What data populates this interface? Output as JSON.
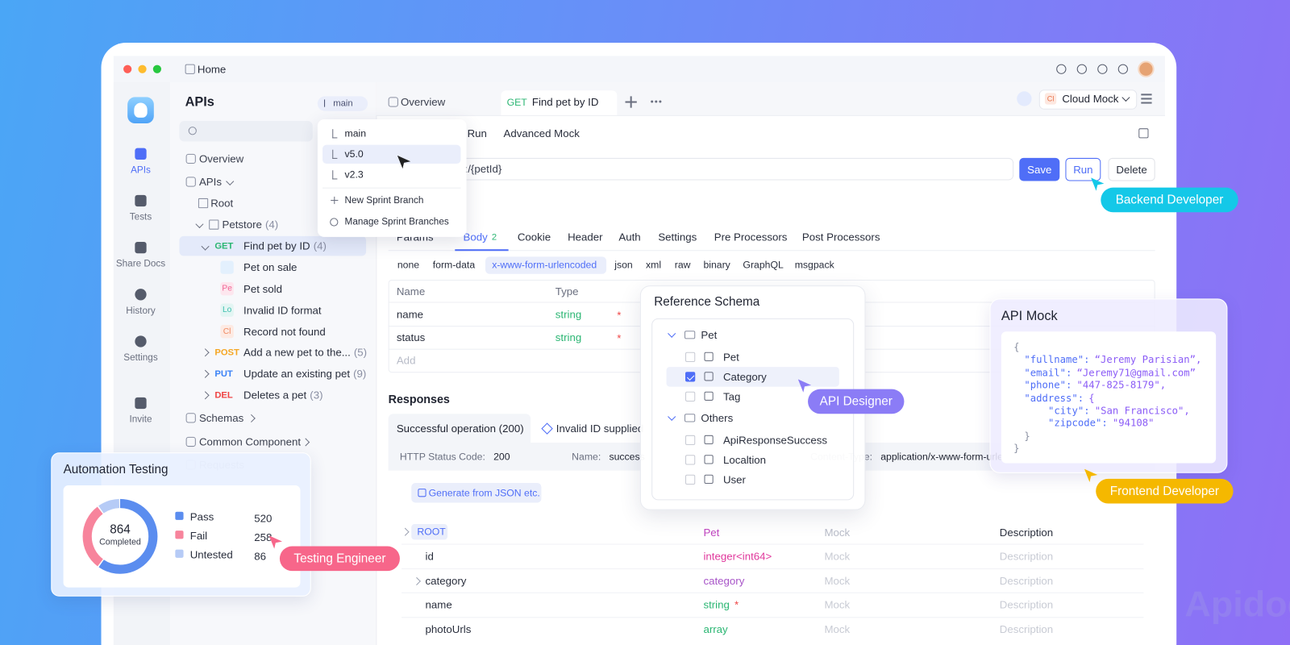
{
  "window": {
    "title": "Home"
  },
  "nav": [
    "APIs",
    "Tests",
    "Share Docs",
    "History",
    "Settings",
    "Invite"
  ],
  "tree": {
    "title": "APIs",
    "branch": "main",
    "overview": "Overview",
    "apis": "APIs",
    "root": "Root",
    "folder": {
      "name": "Petstore",
      "count": "(4)"
    },
    "endpoints": [
      {
        "method": "GET",
        "name": "Find pet by ID",
        "count": "(4)",
        "cases": [
          {
            "name": "Pet on sale"
          },
          {
            "badge": "Pe",
            "name": "Pet sold"
          },
          {
            "badge": "Lo",
            "name": "Invalid ID format"
          },
          {
            "badge": "Cl",
            "name": "Record not found"
          }
        ]
      },
      {
        "method": "POST",
        "name": "Add a new pet to the...",
        "count": "(5)"
      },
      {
        "method": "PUT",
        "name": "Update an existing pet",
        "count": "(9)"
      },
      {
        "method": "DEL",
        "name": "Deletes a pet",
        "count": "(3)"
      }
    ],
    "groups": [
      "Schemas",
      "Common Component",
      "Requests"
    ]
  },
  "branch_menu": {
    "branches": [
      "main",
      "v5.0",
      "v2.3"
    ],
    "actions": [
      "New Sprint Branch",
      "Manage Sprint Branches"
    ]
  },
  "tabs": {
    "overview": "Overview",
    "active": {
      "method": "GET",
      "name": "Find pet by ID"
    },
    "mock_badge": "Cl",
    "mock": "Cloud Mock"
  },
  "mode_tabs": [
    "Run",
    "Advanced Mock"
  ],
  "request": {
    "url": ":/{petId}",
    "buttons": [
      "Save",
      "Run",
      "Delete"
    ]
  },
  "param_tabs": [
    {
      "label": "Params"
    },
    {
      "label": "Body",
      "count": "2"
    },
    {
      "label": "Cookie"
    },
    {
      "label": "Header"
    },
    {
      "label": "Auth"
    },
    {
      "label": "Settings"
    },
    {
      "label": "Pre Processors"
    },
    {
      "label": "Post Processors"
    }
  ],
  "body_types": [
    "none",
    "form-data",
    "x-www-form-urlencoded",
    "json",
    "xml",
    "raw",
    "binary",
    "GraphQL",
    "msgpack"
  ],
  "params_table": {
    "columns": [
      "Name",
      "Type"
    ],
    "rows": [
      {
        "name": "name",
        "type": "string",
        "required": "*"
      },
      {
        "name": "status",
        "type": "string",
        "required": "*"
      }
    ],
    "add": "Add"
  },
  "responses": {
    "title": "Responses",
    "tabs": [
      "Successful operation (200)",
      "Invalid ID supplied"
    ],
    "status_label": "HTTP Status Code:",
    "status": "200",
    "name_label": "Name:",
    "name": "success",
    "type_label": "Content-Type:",
    "type": "application/x-www-form-urlencoded",
    "generate": "Generate from JSON etc."
  },
  "schema": {
    "root": "ROOT",
    "root_type": "Pet",
    "mock": "Mock",
    "description": "Description",
    "fields": [
      {
        "name": "id",
        "type": "integer<int64>",
        "mock": "Mock",
        "description": "Description"
      },
      {
        "name": "category",
        "type": "category",
        "mock": "Mock",
        "description": "Description"
      },
      {
        "name": "name",
        "type": "string",
        "required": "*",
        "mock": "Mock",
        "description": "Description"
      },
      {
        "name": "photoUrls",
        "type": "array",
        "mock": "Mock",
        "description": "Description"
      }
    ]
  },
  "reference_schema": {
    "title": "Reference Schema",
    "groups": [
      {
        "name": "Pet",
        "items": [
          {
            "name": "Pet",
            "checked": false
          },
          {
            "name": "Category",
            "checked": true
          },
          {
            "name": "Tag",
            "checked": false
          }
        ]
      },
      {
        "name": "Others",
        "items": [
          {
            "name": "ApiResponseSuccess",
            "checked": false
          },
          {
            "name": "Localtion",
            "checked": false
          },
          {
            "name": "User",
            "checked": false
          }
        ]
      }
    ]
  },
  "api_mock": {
    "title": "API Mock",
    "lines": [
      "{",
      {
        "key": "\"fullname\":",
        "value": "“Jeremy Parisian”,"
      },
      {
        "key": "\"email\":",
        "value": "“Jeremy71@gmail.com”"
      },
      {
        "key": "\"phone\":",
        "value": "\"447-825-8179\","
      },
      {
        "key": "\"address\":",
        "value": "{"
      },
      {
        "key": "\"city\":",
        "value": "\"San Francisco\","
      },
      {
        "key": "\"zipcode\":",
        "value": "\"94108\""
      },
      "}",
      "}"
    ]
  },
  "automation": {
    "title": "Automation Testing",
    "total": 864,
    "total_label": "Completed",
    "series": [
      {
        "name": "Pass",
        "value": 520,
        "color": "#5b8def"
      },
      {
        "name": "Fail",
        "value": 258,
        "color": "#f7849c"
      },
      {
        "name": "Untested",
        "value": 86,
        "color": "#b6cbf6"
      }
    ]
  },
  "roles": [
    "Backend Developer",
    "API Designer",
    "Frontend Developer",
    "Testing Engineer"
  ],
  "watermark": "Apidog"
}
